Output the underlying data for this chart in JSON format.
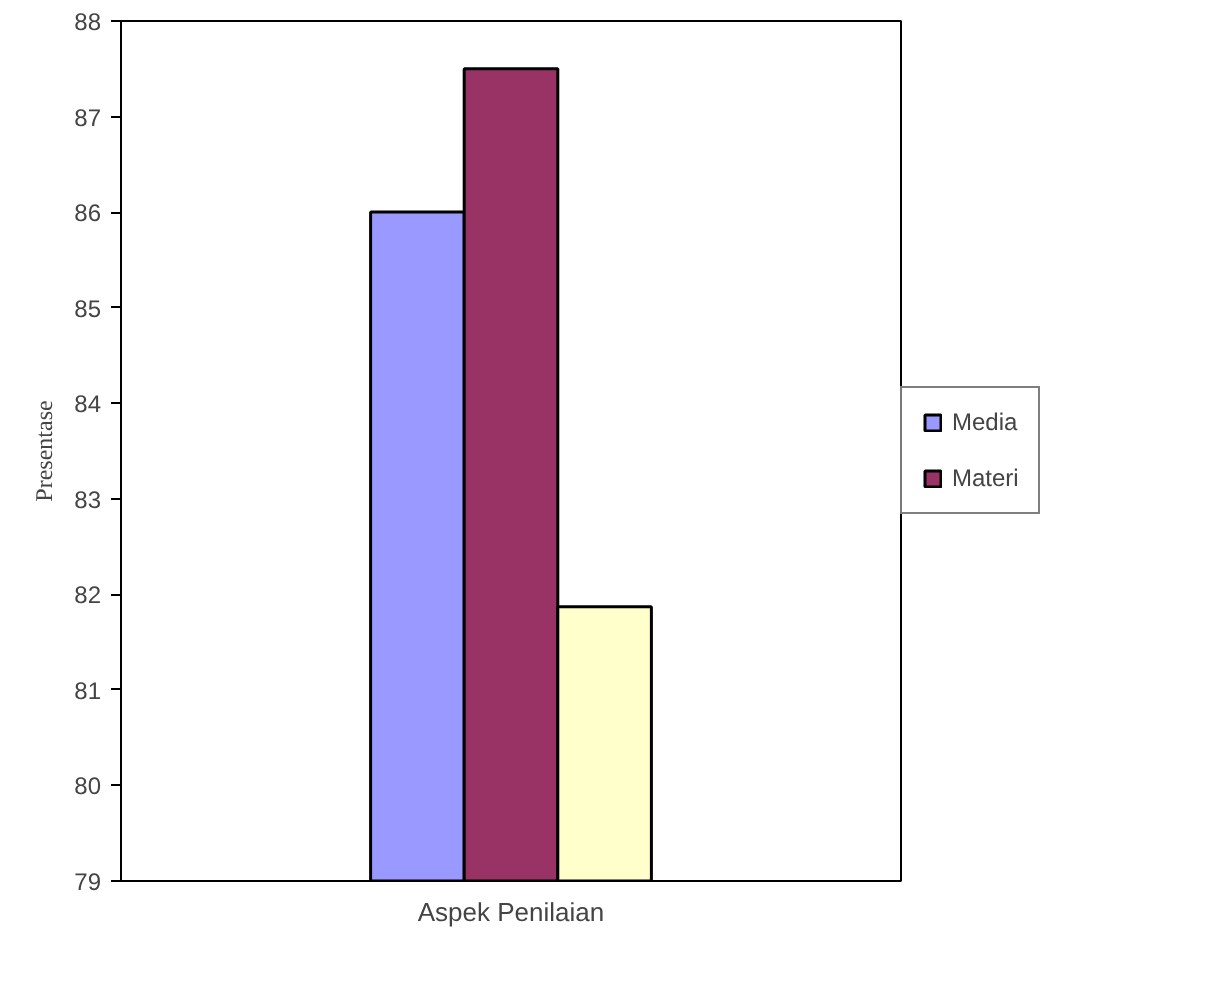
{
  "chart_data": {
    "type": "bar",
    "xlabel": "Aspek Penilaian",
    "ylabel": "Presentase",
    "categories": [
      null
    ],
    "series": [
      {
        "name": "Media",
        "color": "#9999ff",
        "values": [
          86
        ]
      },
      {
        "name": "Materi",
        "color": "#993366",
        "values": [
          87.5
        ]
      },
      {
        "color": "#ffffcc",
        "values": [
          81.87
        ]
      }
    ],
    "ylim": [
      79,
      88
    ],
    "yticks": [
      79,
      80,
      81,
      82,
      83,
      84,
      85,
      86,
      87,
      88
    ],
    "grid": false,
    "legend": "right",
    "tick_labels": "y"
  }
}
